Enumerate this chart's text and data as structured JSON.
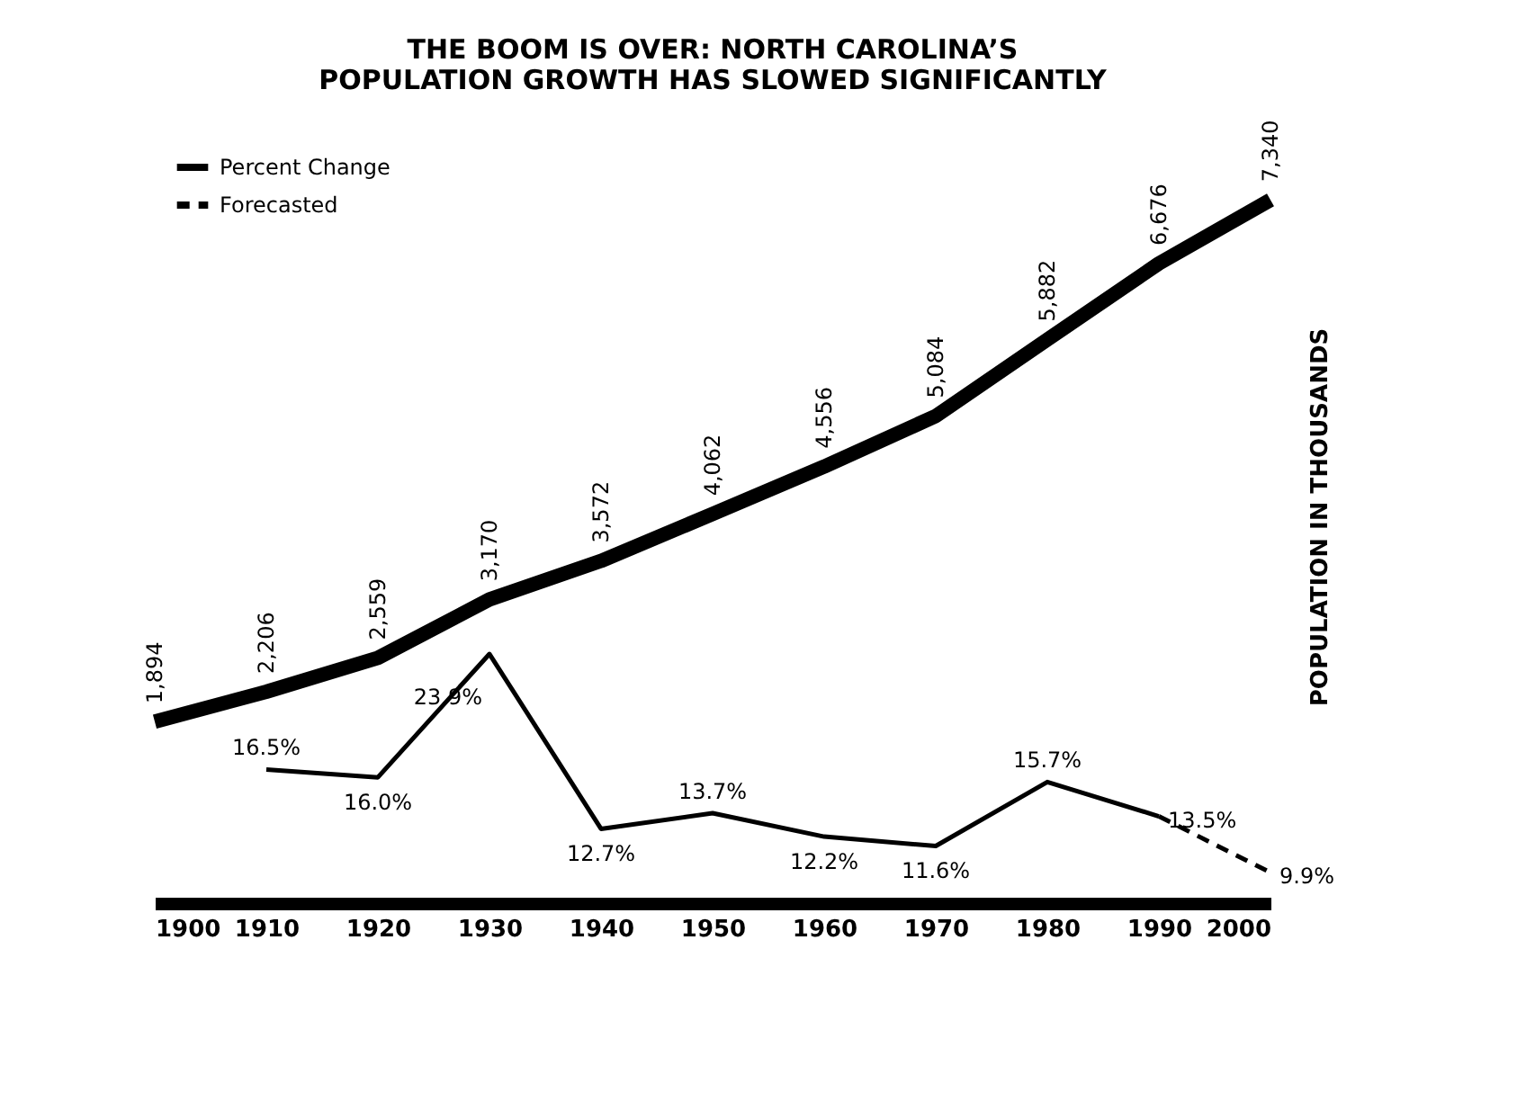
{
  "chart_data": {
    "type": "line",
    "title": "THE BOOM IS OVER: NORTH CAROLINA’S\nPOPULATION GROWTH HAS SLOWED SIGNIFICANTLY",
    "y2label": "POPULATION IN THOUSANDS",
    "xlim": [
      1900,
      2000
    ],
    "xticks": [
      1900,
      1910,
      1920,
      1930,
      1940,
      1950,
      1960,
      1970,
      1980,
      1990,
      2000
    ],
    "tick_labels": "x",
    "grid": false,
    "legend": "top left",
    "marker": "none",
    "series": [
      {
        "axis": "y2",
        "color": "#000000",
        "line_style": "solid",
        "x": [
          1900,
          1910,
          1920,
          1930,
          1940,
          1950,
          1960,
          1970,
          1980,
          1990,
          2000
        ],
        "values": [
          1894,
          2206,
          2559,
          3170,
          3572,
          4062,
          4556,
          5084,
          5882,
          6676,
          7340
        ],
        "value_labels": [
          "1,894",
          "2,206",
          "2,559",
          "3,170",
          "3,572",
          "4,062",
          "4,556",
          "5,084",
          "5,882",
          "6,676",
          "7,340"
        ]
      },
      {
        "name": "Percent Change",
        "color": "#000000",
        "line_style": "solid",
        "x": [
          1910,
          1920,
          1930,
          1940,
          1950,
          1960,
          1970,
          1980,
          1990
        ],
        "values": [
          16.5,
          16.0,
          23.9,
          12.7,
          13.7,
          12.2,
          11.6,
          15.7,
          13.5
        ],
        "value_labels": [
          "16.5%",
          "16.0%",
          "23.9%",
          "12.7%",
          "13.7%",
          "12.2%",
          "11.6%",
          "15.7%",
          "13.5%"
        ]
      },
      {
        "name": "Forecasted",
        "color": "#000000",
        "line_style": "dashed",
        "x": [
          1990,
          2000
        ],
        "values": [
          13.5,
          9.9
        ],
        "value_labels": [
          null,
          "9.9%"
        ]
      }
    ]
  }
}
